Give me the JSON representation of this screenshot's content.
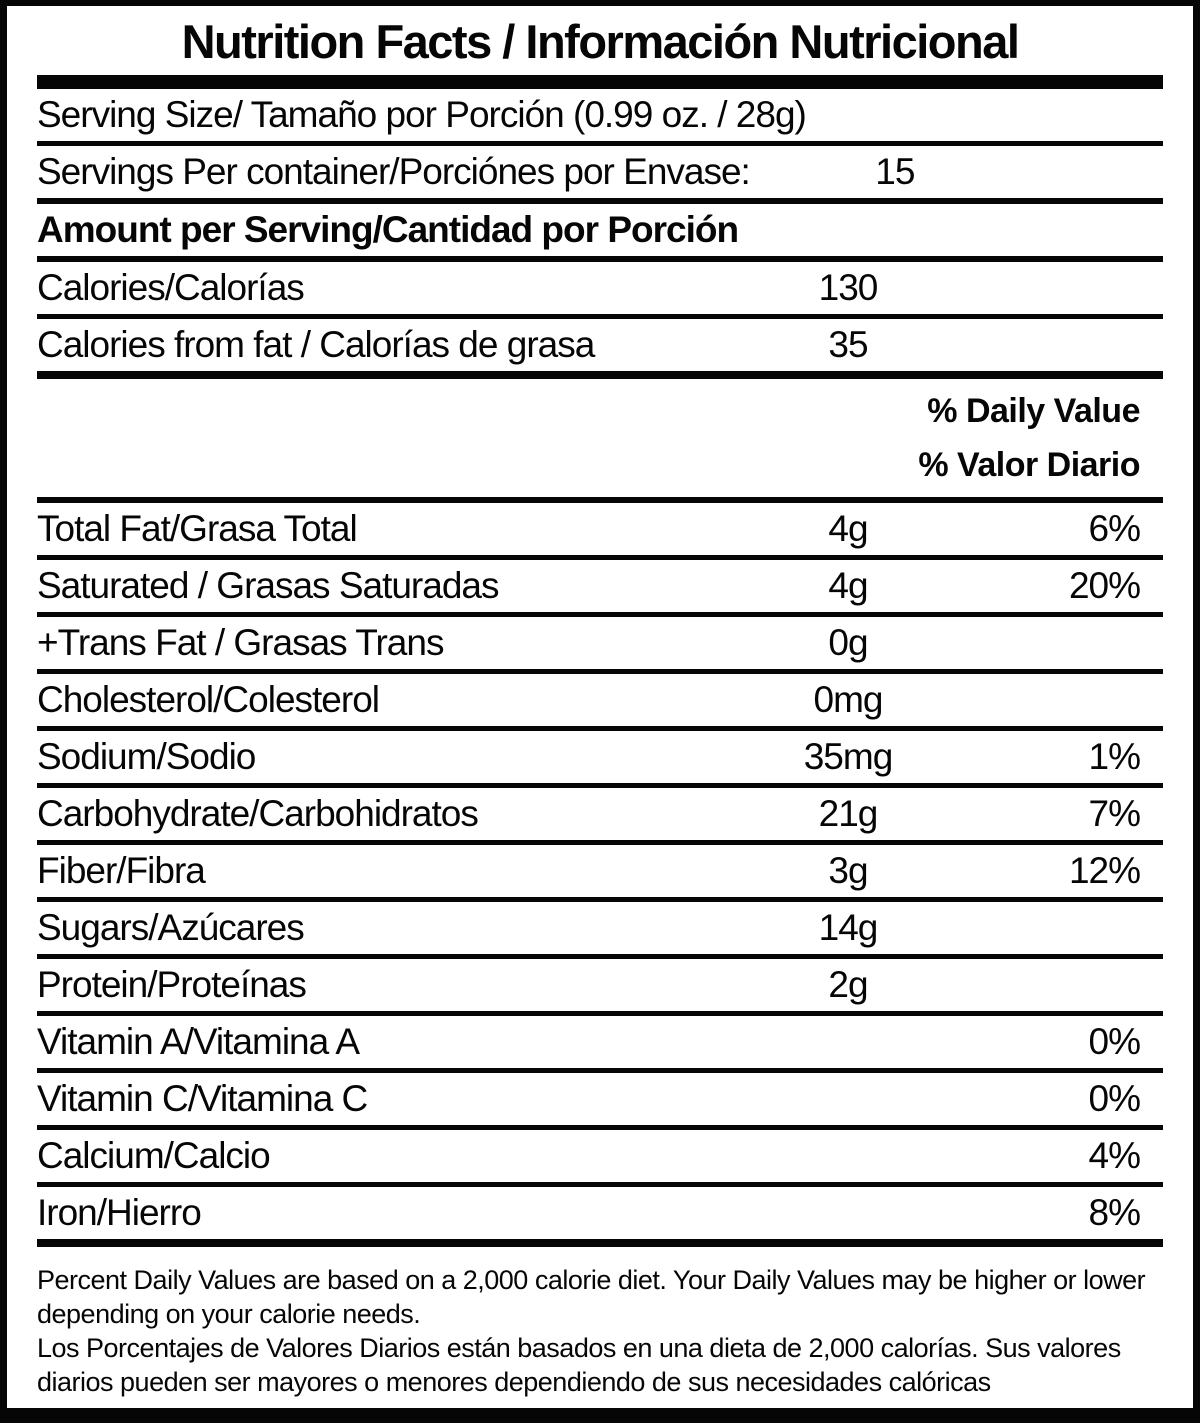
{
  "title": "Nutrition Facts / Información Nutricional",
  "serving_info": {
    "serving_size": "Serving Size/ Tamaño por Porción  (0.99 oz. / 28g)",
    "servings_per_container_label": "Servings Per container/Porciónes por Envase:",
    "servings_per_container_value": "15",
    "amount_per_serving_heading": "Amount per Serving/Cantidad por Porción",
    "calories_label": "Calories/Calorías",
    "calories_value": "130",
    "calories_from_fat_label": "Calories from fat / Calorías de grasa",
    "calories_from_fat_value": "35"
  },
  "daily_value_header": {
    "line1": "% Daily Value",
    "line2": "% Valor Diario"
  },
  "nutrients": [
    {
      "label": "Total Fat/Grasa Total",
      "amount": "4g",
      "dv": "6%"
    },
    {
      "label": "Saturated / Grasas Saturadas",
      "amount": "4g",
      "dv": "20%"
    },
    {
      "label": "+Trans Fat / Grasas Trans",
      "amount": "0g",
      "dv": ""
    },
    {
      "label": "Cholesterol/Colesterol",
      "amount": "0mg",
      "dv": ""
    },
    {
      "label": "Sodium/Sodio",
      "amount": "35mg",
      "dv": "1%"
    },
    {
      "label": "Carbohydrate/Carbohidratos",
      "amount": "21g",
      "dv": "7%"
    },
    {
      "label": "Fiber/Fibra",
      "amount": "3g",
      "dv": "12%"
    },
    {
      "label": "Sugars/Azúcares",
      "amount": "14g",
      "dv": ""
    },
    {
      "label": "Protein/Proteínas",
      "amount": "2g",
      "dv": ""
    },
    {
      "label": "Vitamin A/Vitamina A",
      "amount": "",
      "dv": "0%"
    },
    {
      "label": "Vitamin C/Vitamina C",
      "amount": "",
      "dv": "0%"
    },
    {
      "label": "Calcium/Calcio",
      "amount": "",
      "dv": "4%"
    },
    {
      "label": "Iron/Hierro",
      "amount": "",
      "dv": "8%"
    }
  ],
  "footnotes": {
    "english": "Percent Daily Values are based on a 2,000 calorie diet. Your Daily Values may be higher or lower depending on your calorie needs.",
    "spanish": "Los Porcentajes de Valores Diarios están basados en una dieta de 2,000 calorías. Sus valores diarios pueden ser mayores o menores dependiendo de sus necesidades calóricas"
  }
}
